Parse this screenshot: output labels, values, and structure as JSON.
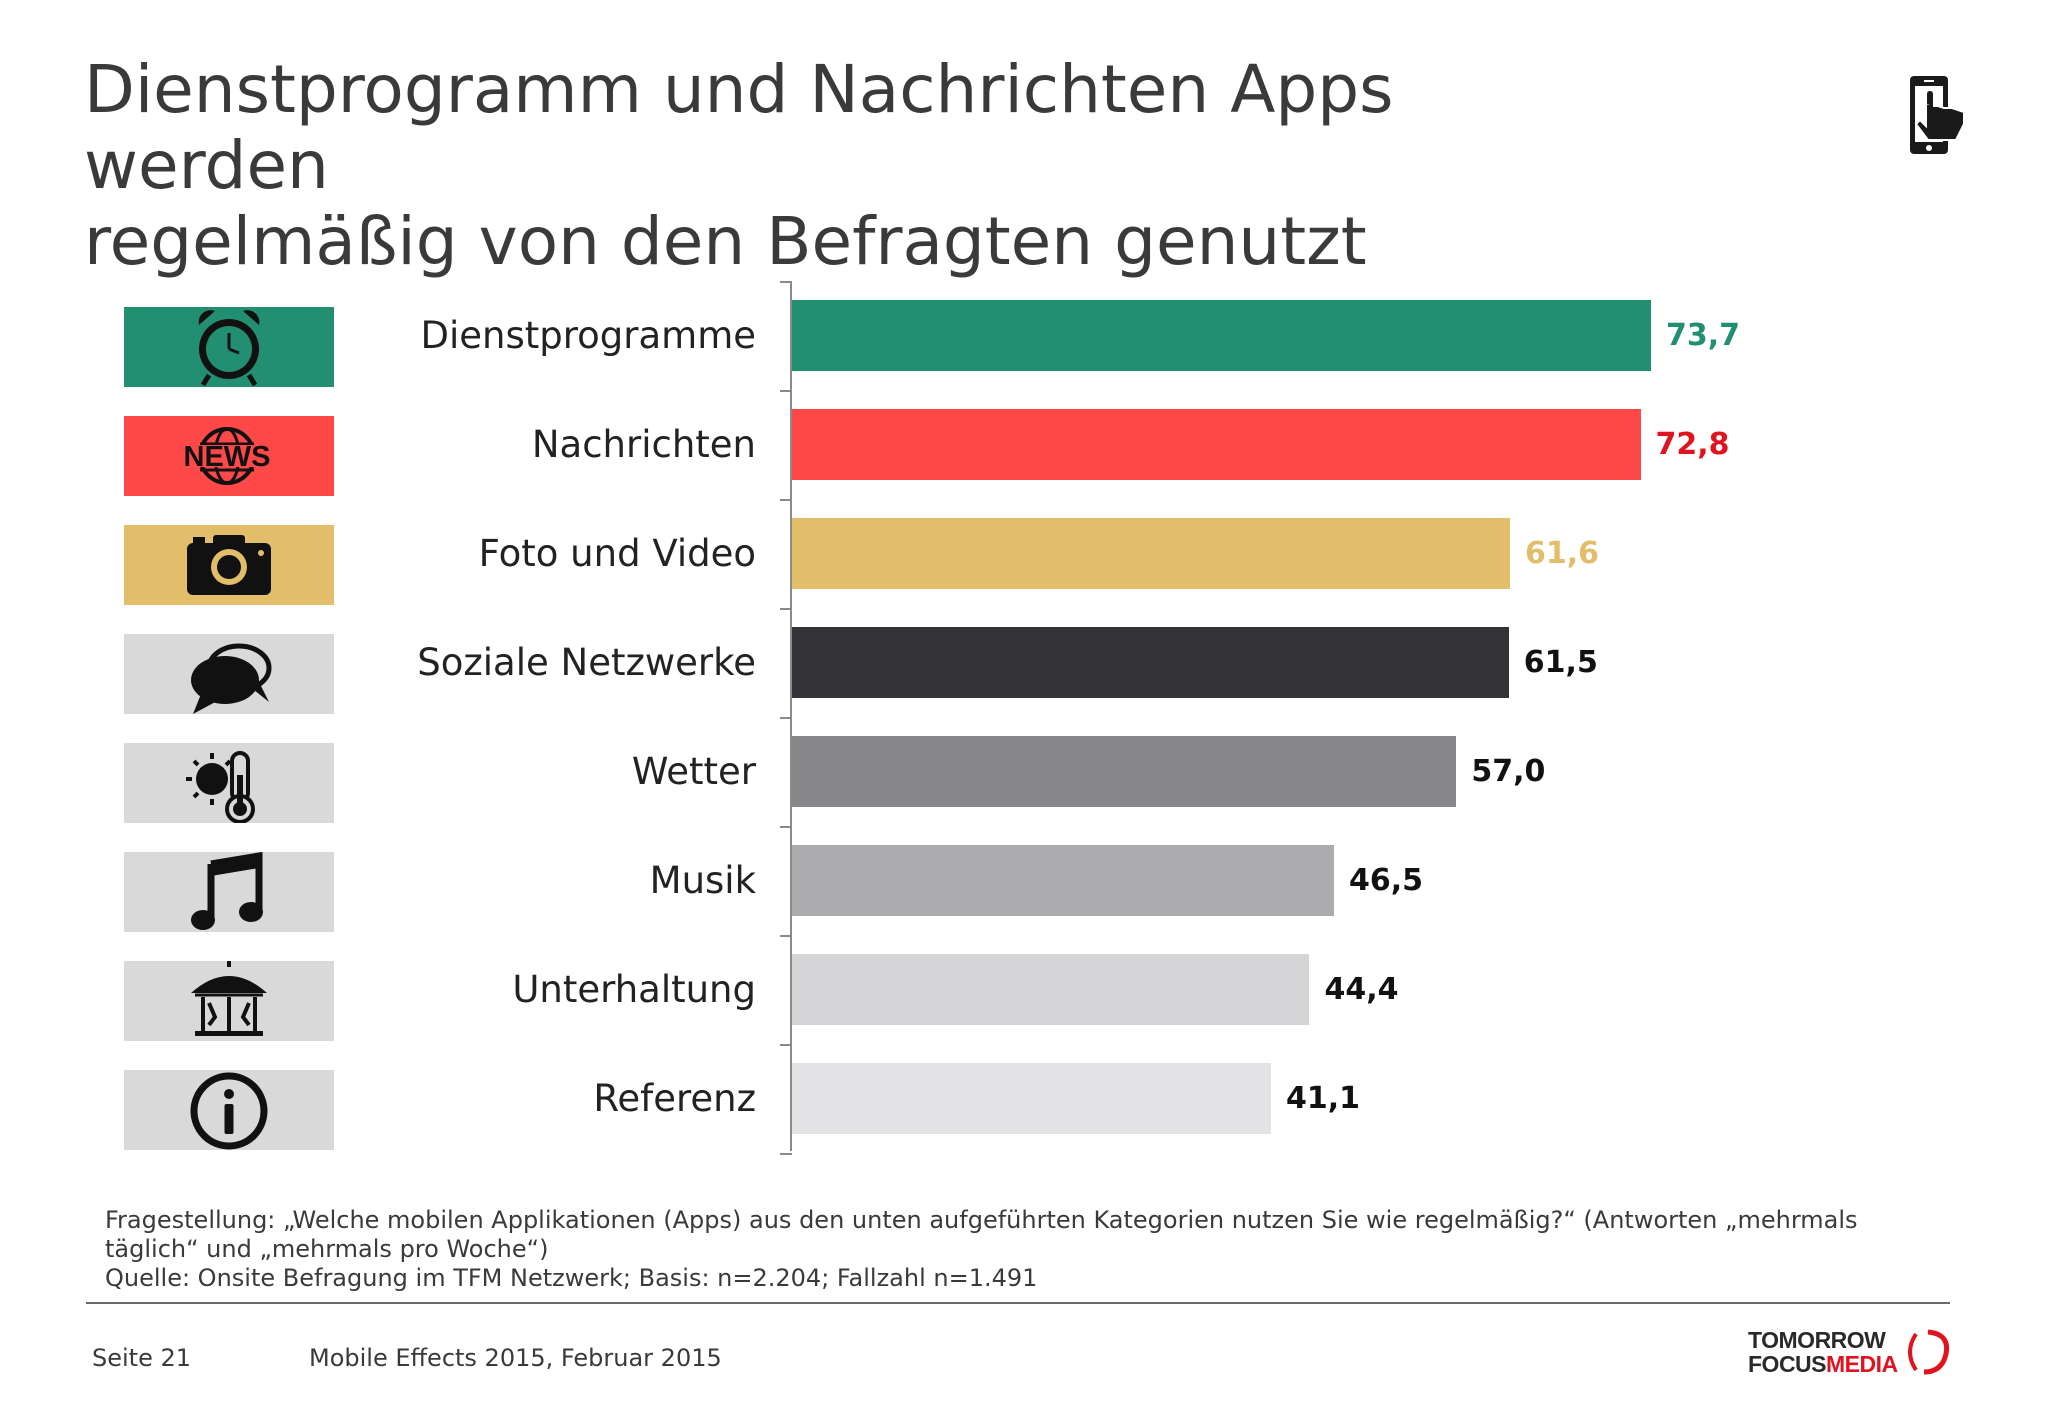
{
  "title": {
    "line1": "Dienstprogramm und Nachrichten Apps werden",
    "line2": "regelmäßig von den Befragten genutzt"
  },
  "header_icon": "smartphone-touch-icon",
  "chart_data": {
    "type": "bar",
    "orientation": "horizontal",
    "categories": [
      "Dienstprogramme",
      "Nachrichten",
      "Foto und Video",
      "Soziale Netzwerke",
      "Wetter",
      "Musik",
      "Unterhaltung",
      "Referenz"
    ],
    "values": [
      73.7,
      72.8,
      61.6,
      61.5,
      57.0,
      46.5,
      44.4,
      41.1
    ],
    "value_labels": [
      "73,7",
      "72,8",
      "61,6",
      "61,5",
      "57,0",
      "46,5",
      "44,4",
      "41,1"
    ],
    "bar_colors": [
      "#228f72",
      "#ff4848",
      "#e3be6a",
      "#333236",
      "#878689",
      "#acabae",
      "#d5d4d7",
      "#e3e3e6"
    ],
    "label_colors": [
      "#228f72",
      "#e0141e",
      "#e3be6a",
      "#111111",
      "#111111",
      "#111111",
      "#111111",
      "#111111"
    ],
    "icon_bg_colors": [
      "#228f72",
      "#ff4848",
      "#e3be6a",
      "#d9d9d9",
      "#d9d9d9",
      "#d9d9d9",
      "#d9d9d9",
      "#d9d9d9"
    ],
    "icons": [
      "alarm-clock-icon",
      "news-globe-icon",
      "camera-icon",
      "speech-bubbles-icon",
      "weather-thermometer-icon",
      "music-note-icon",
      "carousel-icon",
      "info-icon"
    ],
    "news_icon_text": "NEWS",
    "xlim": [
      0,
      100
    ],
    "grid": false,
    "legend": "none"
  },
  "footnote": {
    "question_line1": "Fragestellung: „Welche mobilen Applikationen (Apps) aus den unten aufgeführten Kategorien nutzen Sie wie regelmäßig?“ (Antworten „mehrmals",
    "question_line2": "täglich“ und „mehrmals pro Woche“)",
    "source": "Quelle: Onsite Befragung im TFM Netzwerk; Basis: n=2.204; Fallzahl n=1.491"
  },
  "footer": {
    "page": "Seite 21",
    "study": "Mobile Effects 2015, Februar 2015",
    "logo_line1": "TOMORROW",
    "logo_focus": "FOCUS",
    "logo_media": "MEDIA"
  }
}
